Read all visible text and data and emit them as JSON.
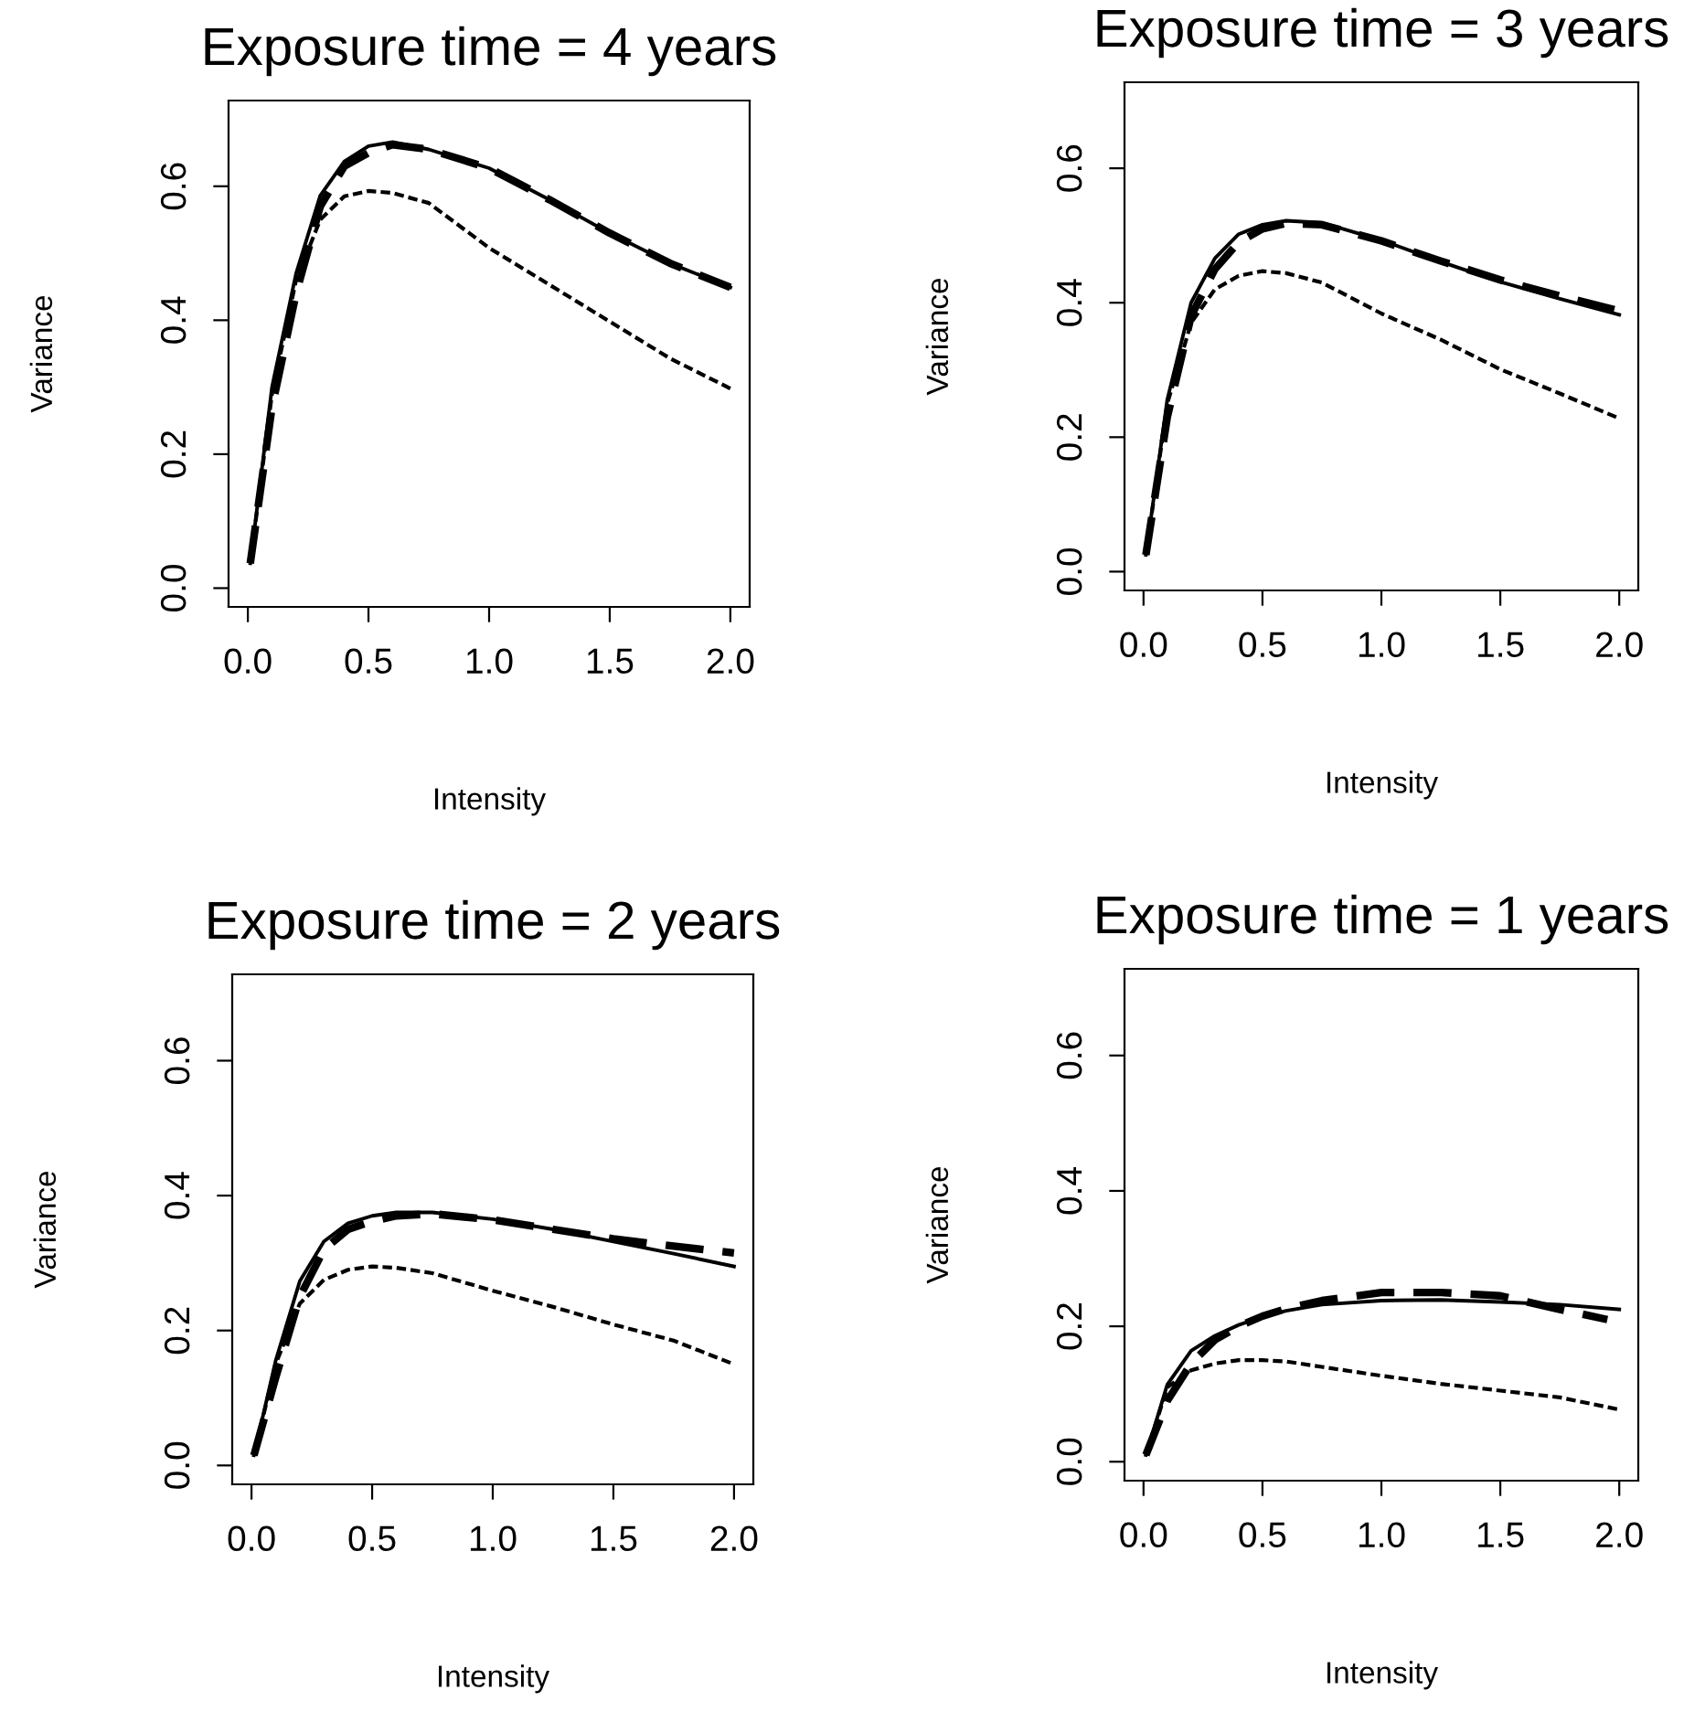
{
  "chart_data": [
    {
      "type": "line",
      "title": "Exposure time = 4 years",
      "xlabel": "Intensity",
      "ylabel": "Variance",
      "xlim": [
        -0.08,
        2.08
      ],
      "ylim": [
        -0.028,
        0.728
      ],
      "xticks": [
        {
          "value": 0,
          "label": "0.0"
        },
        {
          "value": 0.5,
          "label": "0.5"
        },
        {
          "value": 1,
          "label": "1.0"
        },
        {
          "value": 1.5,
          "label": "1.5"
        },
        {
          "value": 2,
          "label": "2.0"
        }
      ],
      "yticks": [
        {
          "value": 0,
          "label": "0.0"
        },
        {
          "value": 0.2,
          "label": "0.2"
        },
        {
          "value": 0.4,
          "label": "0.4"
        },
        {
          "value": 0.6,
          "label": "0.6"
        }
      ],
      "grid": false,
      "legend": false,
      "marker": "none",
      "x": [
        0.01,
        0.1,
        0.2,
        0.3,
        0.4,
        0.5,
        0.6,
        0.75,
        1.0,
        1.25,
        1.5,
        1.75,
        2.0
      ],
      "series": [
        {
          "color": "#000000",
          "line_style": "solid",
          "values": [
            0.037,
            0.3,
            0.47,
            0.586,
            0.637,
            0.66,
            0.666,
            0.655,
            0.627,
            0.58,
            0.53,
            0.485,
            0.449
          ]
        },
        {
          "color": "#000000",
          "line_style": "dashed",
          "values": [
            0.037,
            0.27,
            0.44,
            0.57,
            0.63,
            0.65,
            0.662,
            0.655,
            0.627,
            0.58,
            0.53,
            0.485,
            0.449
          ]
        },
        {
          "color": "#000000",
          "line_style": "dotted",
          "values": [
            0.037,
            0.29,
            0.46,
            0.55,
            0.585,
            0.593,
            0.59,
            0.575,
            0.508,
            0.453,
            0.398,
            0.343,
            0.298
          ]
        }
      ]
    },
    {
      "type": "line",
      "title": "Exposure time = 3 years",
      "xlabel": "Intensity",
      "ylabel": "Variance",
      "xlim": [
        -0.08,
        2.08
      ],
      "ylim": [
        -0.028,
        0.728
      ],
      "xticks": [
        {
          "value": 0,
          "label": "0.0"
        },
        {
          "value": 0.5,
          "label": "0.5"
        },
        {
          "value": 1,
          "label": "1.0"
        },
        {
          "value": 1.5,
          "label": "1.5"
        },
        {
          "value": 2,
          "label": "2.0"
        }
      ],
      "yticks": [
        {
          "value": 0,
          "label": "0.0"
        },
        {
          "value": 0.2,
          "label": "0.2"
        },
        {
          "value": 0.4,
          "label": "0.4"
        },
        {
          "value": 0.6,
          "label": "0.6"
        }
      ],
      "grid": false,
      "legend": false,
      "marker": "none",
      "x": [
        0.01,
        0.1,
        0.2,
        0.3,
        0.4,
        0.5,
        0.6,
        0.75,
        1.0,
        1.25,
        1.5,
        1.75,
        2.0
      ],
      "series": [
        {
          "color": "#000000",
          "line_style": "solid",
          "values": [
            0.025,
            0.256,
            0.4,
            0.466,
            0.502,
            0.516,
            0.522,
            0.519,
            0.493,
            0.461,
            0.431,
            0.406,
            0.382
          ]
        },
        {
          "color": "#000000",
          "line_style": "dashed",
          "values": [
            0.025,
            0.23,
            0.38,
            0.45,
            0.49,
            0.51,
            0.518,
            0.516,
            0.492,
            0.462,
            0.434,
            0.41,
            0.388
          ]
        },
        {
          "color": "#000000",
          "line_style": "dotted",
          "values": [
            0.025,
            0.25,
            0.37,
            0.42,
            0.44,
            0.447,
            0.444,
            0.43,
            0.384,
            0.345,
            0.301,
            0.265,
            0.228
          ]
        }
      ]
    },
    {
      "type": "line",
      "title": "Exposure time = 2 years",
      "xlabel": "Intensity",
      "ylabel": "Variance",
      "xlim": [
        -0.08,
        2.08
      ],
      "ylim": [
        -0.028,
        0.728
      ],
      "xticks": [
        {
          "value": 0,
          "label": "0.0"
        },
        {
          "value": 0.5,
          "label": "0.5"
        },
        {
          "value": 1,
          "label": "1.0"
        },
        {
          "value": 1.5,
          "label": "1.5"
        },
        {
          "value": 2,
          "label": "2.0"
        }
      ],
      "yticks": [
        {
          "value": 0,
          "label": "0.0"
        },
        {
          "value": 0.2,
          "label": "0.2"
        },
        {
          "value": 0.4,
          "label": "0.4"
        },
        {
          "value": 0.6,
          "label": "0.6"
        }
      ],
      "grid": false,
      "legend": false,
      "marker": "none",
      "x": [
        0.01,
        0.1,
        0.2,
        0.3,
        0.4,
        0.5,
        0.6,
        0.75,
        1.0,
        1.25,
        1.5,
        1.75,
        2.0
      ],
      "series": [
        {
          "color": "#000000",
          "line_style": "solid",
          "values": [
            0.015,
            0.155,
            0.273,
            0.332,
            0.359,
            0.37,
            0.375,
            0.375,
            0.365,
            0.35,
            0.332,
            0.314,
            0.295
          ]
        },
        {
          "color": "#000000",
          "line_style": "dashed",
          "values": [
            0.015,
            0.13,
            0.25,
            0.32,
            0.35,
            0.362,
            0.37,
            0.373,
            0.364,
            0.35,
            0.336,
            0.325,
            0.315
          ]
        },
        {
          "color": "#000000",
          "line_style": "dotted",
          "values": [
            0.015,
            0.15,
            0.24,
            0.275,
            0.29,
            0.295,
            0.293,
            0.285,
            0.259,
            0.235,
            0.209,
            0.185,
            0.15
          ]
        }
      ]
    },
    {
      "type": "line",
      "title": "Exposure time = 1 years",
      "xlabel": "Intensity",
      "ylabel": "Variance",
      "xlim": [
        -0.08,
        2.08
      ],
      "ylim": [
        -0.028,
        0.728
      ],
      "xticks": [
        {
          "value": 0,
          "label": "0.0"
        },
        {
          "value": 0.5,
          "label": "0.5"
        },
        {
          "value": 1,
          "label": "1.0"
        },
        {
          "value": 1.5,
          "label": "1.5"
        },
        {
          "value": 2,
          "label": "2.0"
        }
      ],
      "yticks": [
        {
          "value": 0,
          "label": "0.0"
        },
        {
          "value": 0.2,
          "label": "0.2"
        },
        {
          "value": 0.4,
          "label": "0.4"
        },
        {
          "value": 0.6,
          "label": "0.6"
        }
      ],
      "grid": false,
      "legend": false,
      "marker": "none",
      "x": [
        0.01,
        0.1,
        0.2,
        0.3,
        0.4,
        0.5,
        0.6,
        0.75,
        1.0,
        1.25,
        1.5,
        1.75,
        2.0
      ],
      "series": [
        {
          "color": "#000000",
          "line_style": "solid",
          "values": [
            0.01,
            0.114,
            0.164,
            0.186,
            0.202,
            0.214,
            0.223,
            0.232,
            0.238,
            0.239,
            0.236,
            0.232,
            0.225
          ]
        },
        {
          "color": "#000000",
          "line_style": "dashed",
          "x": [
            0.01,
            0.1,
            0.2,
            0.3,
            0.4,
            0.5,
            0.6,
            0.75,
            1.0,
            1.25,
            1.5,
            1.75,
            1.95
          ],
          "values": [
            0.01,
            0.09,
            0.145,
            0.18,
            0.2,
            0.215,
            0.226,
            0.238,
            0.25,
            0.25,
            0.245,
            0.225,
            0.21
          ]
        },
        {
          "color": "#000000",
          "line_style": "dotted",
          "values": [
            0.01,
            0.11,
            0.135,
            0.145,
            0.15,
            0.15,
            0.148,
            0.14,
            0.127,
            0.115,
            0.105,
            0.095,
            0.077
          ]
        }
      ]
    }
  ]
}
